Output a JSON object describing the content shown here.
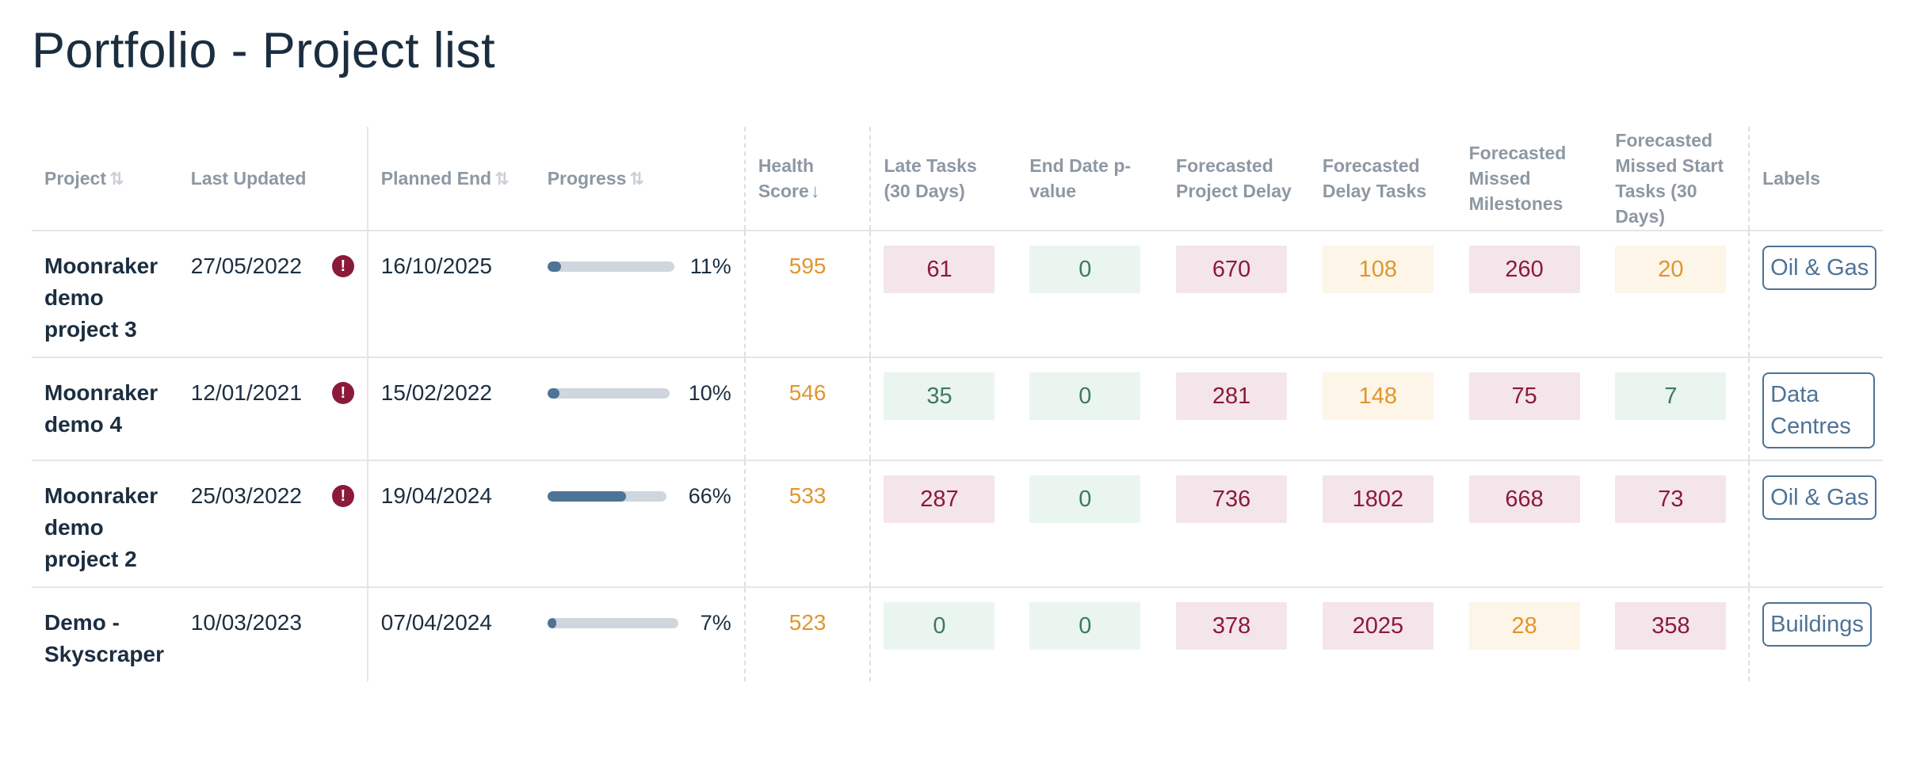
{
  "page": {
    "title": "Portfolio - Project list"
  },
  "columns": {
    "project": "Project",
    "last_updated": "Last Updated",
    "planned_end": "Planned End",
    "progress": "Progress",
    "health_score": "Health Score",
    "late_tasks": "Late Tasks (30 Days)",
    "end_date_pvalue": "End Date p-value",
    "forecasted_project_delay": "Forecasted Project Delay",
    "forecasted_delay_tasks": "Forecasted Delay Tasks",
    "forecasted_missed_milestones": "Forecasted Missed Milestones",
    "forecasted_missed_start_tasks": "Forecasted Missed Start Tasks (30 Days)",
    "labels": "Labels"
  },
  "icons": {
    "sort_neutral": "sort-arrows-icon",
    "sort_desc": "arrow-down-icon",
    "alert": "exclamation-circle-icon"
  },
  "colors": {
    "danger_bg": "#f4e5ea",
    "danger_text": "#8b1a3a",
    "good_bg": "#eaf5ef",
    "good_text": "#3e7a5c",
    "warn_bg": "#fdf5e8",
    "warn_text": "#e0962d",
    "progress_fill": "#4d7396",
    "progress_track": "#cfd6dd",
    "label_border": "#4d7396"
  },
  "rows": [
    {
      "project": "Moonraker demo project 3",
      "last_updated": "27/05/2022",
      "alert": true,
      "alert_glyph": "!",
      "planned_end": "16/10/2025",
      "progress": 0.11,
      "progress_text": "11%",
      "health": "595",
      "late_tasks": "61",
      "late_tasks_status": "danger",
      "end_date_pvalue": "0",
      "end_date_pvalue_status": "good",
      "project_delay": "670",
      "project_delay_status": "danger",
      "delay_tasks": "108",
      "delay_tasks_status": "warn",
      "missed_milestones": "260",
      "missed_milestones_status": "danger",
      "missed_start_tasks": "20",
      "missed_start_tasks_status": "warn",
      "label": "Oil & Gas"
    },
    {
      "project": "Moonraker demo 4",
      "last_updated": "12/01/2021",
      "alert": true,
      "alert_glyph": "!",
      "planned_end": "15/02/2022",
      "progress": 0.1,
      "progress_text": "10%",
      "health": "546",
      "late_tasks": "35",
      "late_tasks_status": "good",
      "end_date_pvalue": "0",
      "end_date_pvalue_status": "good",
      "project_delay": "281",
      "project_delay_status": "danger",
      "delay_tasks": "148",
      "delay_tasks_status": "warn",
      "missed_milestones": "75",
      "missed_milestones_status": "danger",
      "missed_start_tasks": "7",
      "missed_start_tasks_status": "good",
      "label": "Data Centres"
    },
    {
      "project": "Moonraker demo project 2",
      "last_updated": "25/03/2022",
      "alert": true,
      "alert_glyph": "!",
      "planned_end": "19/04/2024",
      "progress": 0.66,
      "progress_text": "66%",
      "health": "533",
      "late_tasks": "287",
      "late_tasks_status": "danger",
      "end_date_pvalue": "0",
      "end_date_pvalue_status": "good",
      "project_delay": "736",
      "project_delay_status": "danger",
      "delay_tasks": "1802",
      "delay_tasks_status": "danger",
      "missed_milestones": "668",
      "missed_milestones_status": "danger",
      "missed_start_tasks": "73",
      "missed_start_tasks_status": "danger",
      "label": "Oil & Gas"
    },
    {
      "project": "Demo - Skyscraper",
      "last_updated": "10/03/2023",
      "alert": false,
      "alert_glyph": "",
      "planned_end": "07/04/2024",
      "progress": 0.07,
      "progress_text": "7%",
      "health": "523",
      "late_tasks": "0",
      "late_tasks_status": "good",
      "end_date_pvalue": "0",
      "end_date_pvalue_status": "good",
      "project_delay": "378",
      "project_delay_status": "danger",
      "delay_tasks": "2025",
      "delay_tasks_status": "danger",
      "missed_milestones": "28",
      "missed_milestones_status": "warn",
      "missed_start_tasks": "358",
      "missed_start_tasks_status": "danger",
      "label": "Buildings"
    }
  ]
}
